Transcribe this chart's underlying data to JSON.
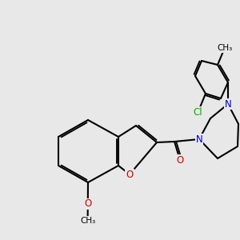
{
  "bg_color": "#e8e8e8",
  "bond_color": "#000000",
  "N_color": "#0000cc",
  "O_color": "#cc0000",
  "Cl_color": "#00aa00",
  "lw": 1.5,
  "fs": 8.5
}
